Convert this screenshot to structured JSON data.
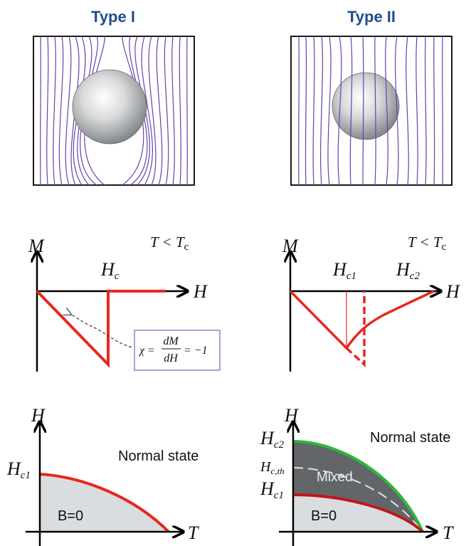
{
  "panels": {
    "left_title": "Type I",
    "right_title": "Type II"
  },
  "magnetization": {
    "y_symbol": "M",
    "x_symbol": "H",
    "condition": "T < T",
    "condition_sub": "c",
    "left_field_label": "H",
    "left_field_sub": "c",
    "right_field1_label": "H",
    "right_field1_sub": "c1",
    "right_field2_label": "H",
    "right_field2_sub": "c2",
    "susceptibility": {
      "lhs": "χ =",
      "numerator": "dM",
      "denominator": "dH",
      "rhs": "= −1"
    }
  },
  "phase_diagram": {
    "y_symbol": "H",
    "x_symbol": "T",
    "left": {
      "field_label": "H",
      "field_sub": "c1",
      "normal_label": "Normal state",
      "meissner_label": "B=0"
    },
    "right": {
      "hc2_label": "H",
      "hc2_sub": "c2",
      "hcth_label": "H",
      "hcth_sub": "c,th",
      "hc1_label": "H",
      "hc1_sub": "c1",
      "normal_label": "Normal state",
      "mixed_label": "Mixed",
      "meissner_label": "B=0"
    }
  },
  "colors": {
    "field_lines": "#6a3fb0",
    "curve_red": "#e8281e",
    "curve_green": "#2db83a",
    "heading_blue": "#1f4e8c",
    "meissner_fill": "#d9dde0",
    "mixed_fill": "#636668"
  }
}
